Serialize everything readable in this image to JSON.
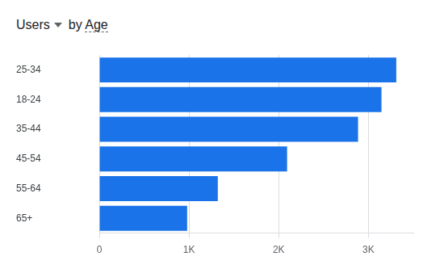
{
  "chart_data": {
    "type": "bar",
    "orientation": "horizontal",
    "title": "Users",
    "subtitle": "by Age",
    "categories": [
      "25-34",
      "18-24",
      "35-44",
      "45-54",
      "55-64",
      "65+"
    ],
    "values": [
      3310,
      3145,
      2884,
      2093,
      1321,
      979
    ],
    "color": "#1a73e8",
    "xlim": [
      0,
      3500
    ],
    "xticks": [
      0,
      {
        "value": 1000,
        "label": "1K"
      },
      {
        "value": 2000,
        "label": "2K"
      },
      {
        "value": 3000,
        "label": "3K"
      }
    ],
    "grid": true
  }
}
